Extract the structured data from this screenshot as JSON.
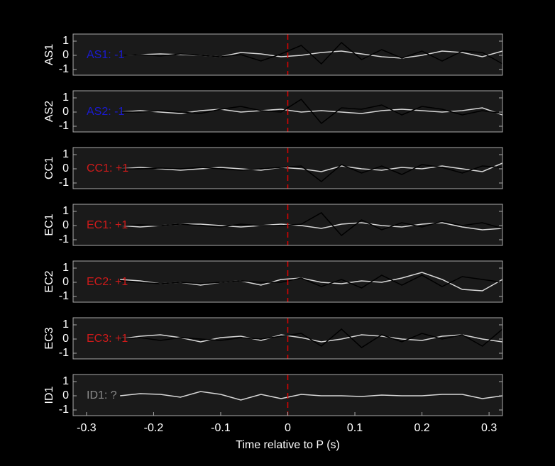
{
  "chart_data": [
    {
      "type": "line",
      "ylabel": "AS1",
      "annotation": "AS1: -1",
      "annotation_color": "#1a1ad0",
      "x": [
        -0.25,
        -0.22,
        -0.19,
        -0.16,
        -0.13,
        -0.1,
        -0.07,
        -0.04,
        -0.01,
        0.02,
        0.05,
        0.08,
        0.11,
        0.14,
        0.17,
        0.2,
        0.23,
        0.26,
        0.29,
        0.32
      ],
      "series": [
        {
          "color": "#d8d8d8",
          "values": [
            0,
            0.05,
            0.1,
            0.05,
            0,
            -0.1,
            0.2,
            0.1,
            -0.1,
            0,
            0.2,
            0.3,
            0.1,
            -0.1,
            -0.2,
            0,
            0.3,
            0.2,
            -0.1,
            0.3
          ]
        },
        {
          "color": "#000000",
          "values": [
            0,
            0.05,
            -0.05,
            0.1,
            0,
            -0.1,
            0.05,
            -0.4,
            0.1,
            0.7,
            -0.6,
            0.9,
            -0.3,
            0.4,
            -0.2,
            0.3,
            -0.4,
            0.3,
            0.2,
            -0.6
          ]
        }
      ],
      "xlim": [
        -0.32,
        0.32
      ],
      "ylim": [
        -1.4,
        1.5
      ],
      "yticks": [
        1,
        0,
        -1
      ],
      "vline": 0,
      "vline_color": "#e00000"
    },
    {
      "type": "line",
      "ylabel": "AS2",
      "annotation": "AS2: -1",
      "annotation_color": "#1a1ad0",
      "x": [
        -0.25,
        -0.22,
        -0.19,
        -0.16,
        -0.13,
        -0.1,
        -0.07,
        -0.04,
        -0.01,
        0.02,
        0.05,
        0.08,
        0.11,
        0.14,
        0.17,
        0.2,
        0.23,
        0.26,
        0.29,
        0.32
      ],
      "series": [
        {
          "color": "#d8d8d8",
          "values": [
            0,
            0.1,
            0,
            -0.1,
            0.1,
            0.2,
            0,
            0.1,
            0.2,
            0,
            0.1,
            0,
            -0.1,
            0.1,
            0.2,
            0.1,
            0,
            0.1,
            0.3,
            -0.2
          ]
        },
        {
          "color": "#000000",
          "values": [
            0,
            0,
            0.1,
            0,
            -0.1,
            0.2,
            0.4,
            0.1,
            0,
            0.9,
            -0.8,
            0.3,
            0.2,
            0.5,
            -0.2,
            0.4,
            0.2,
            -0.2,
            0.1,
            -0.1
          ]
        }
      ],
      "xlim": [
        -0.32,
        0.32
      ],
      "ylim": [
        -1.4,
        1.5
      ],
      "yticks": [
        1,
        0,
        -1
      ],
      "vline": 0,
      "vline_color": "#e00000"
    },
    {
      "type": "line",
      "ylabel": "CC1",
      "annotation": "CC1: +1",
      "annotation_color": "#d01a1a",
      "x": [
        -0.25,
        -0.22,
        -0.19,
        -0.16,
        -0.13,
        -0.1,
        -0.07,
        -0.04,
        -0.01,
        0.02,
        0.05,
        0.08,
        0.11,
        0.14,
        0.17,
        0.2,
        0.23,
        0.26,
        0.29,
        0.32
      ],
      "series": [
        {
          "color": "#d8d8d8",
          "values": [
            0,
            0.1,
            0,
            -0.1,
            0,
            0.1,
            0,
            -0.1,
            0.1,
            0,
            -0.2,
            0.2,
            0,
            -0.1,
            0.1,
            0,
            0.2,
            0,
            -0.2,
            0.4
          ]
        },
        {
          "color": "#000000",
          "values": [
            0,
            0,
            0.05,
            0,
            0.1,
            0,
            -0.1,
            0,
            0.1,
            0.2,
            -0.9,
            0.3,
            -0.3,
            0.2,
            -0.4,
            0.3,
            0.1,
            -0.3,
            0.2,
            0.1
          ]
        }
      ],
      "xlim": [
        -0.32,
        0.32
      ],
      "ylim": [
        -1.4,
        1.5
      ],
      "yticks": [
        1,
        0,
        -1
      ],
      "vline": 0,
      "vline_color": "#e00000"
    },
    {
      "type": "line",
      "ylabel": "EC1",
      "annotation": "EC1: +1",
      "annotation_color": "#d01a1a",
      "x": [
        -0.25,
        -0.22,
        -0.19,
        -0.16,
        -0.13,
        -0.1,
        -0.07,
        -0.04,
        -0.01,
        0.02,
        0.05,
        0.08,
        0.11,
        0.14,
        0.17,
        0.2,
        0.23,
        0.26,
        0.29,
        0.32
      ],
      "series": [
        {
          "color": "#d8d8d8",
          "values": [
            0,
            -0.1,
            0,
            0.1,
            0.1,
            0,
            -0.1,
            0,
            0.1,
            0,
            -0.2,
            0.1,
            0.2,
            0,
            -0.1,
            0.1,
            0.2,
            -0.1,
            -0.3,
            -0.2
          ]
        },
        {
          "color": "#000000",
          "values": [
            0,
            0.05,
            0,
            0.1,
            0,
            -0.1,
            0.1,
            0,
            0,
            0.1,
            0.9,
            -0.7,
            0.4,
            -0.3,
            0.2,
            -0.1,
            0.3,
            0,
            0.2,
            -0.2
          ]
        }
      ],
      "xlim": [
        -0.32,
        0.32
      ],
      "ylim": [
        -1.4,
        1.5
      ],
      "yticks": [
        1,
        0,
        -1
      ],
      "vline": 0,
      "vline_color": "#e00000"
    },
    {
      "type": "line",
      "ylabel": "EC2",
      "annotation": "EC2: +1",
      "annotation_color": "#d01a1a",
      "x": [
        -0.25,
        -0.22,
        -0.19,
        -0.16,
        -0.13,
        -0.1,
        -0.07,
        -0.04,
        -0.01,
        0.02,
        0.05,
        0.08,
        0.11,
        0.14,
        0.17,
        0.2,
        0.23,
        0.26,
        0.29,
        0.32
      ],
      "series": [
        {
          "color": "#d8d8d8",
          "values": [
            0.2,
            0.1,
            -0.1,
            0,
            -0.2,
            0,
            0.1,
            -0.2,
            0.2,
            0.3,
            0,
            -0.1,
            0.1,
            0,
            0.3,
            0.7,
            0.2,
            -0.5,
            -0.6,
            0.2
          ]
        },
        {
          "color": "#000000",
          "values": [
            0.1,
            0,
            -0.1,
            0,
            -0.1,
            0,
            0.1,
            0,
            0,
            0.3,
            -0.3,
            0.2,
            -0.4,
            0.5,
            -0.2,
            0.5,
            -0.3,
            0.4,
            0.2,
            0
          ]
        }
      ],
      "xlim": [
        -0.32,
        0.32
      ],
      "ylim": [
        -1.4,
        1.5
      ],
      "yticks": [
        1,
        0,
        -1
      ],
      "vline": 0,
      "vline_color": "#e00000"
    },
    {
      "type": "line",
      "ylabel": "EC3",
      "annotation": "EC3: +1",
      "annotation_color": "#d01a1a",
      "x": [
        -0.25,
        -0.22,
        -0.19,
        -0.16,
        -0.13,
        -0.1,
        -0.07,
        -0.04,
        -0.01,
        0.02,
        0.05,
        0.08,
        0.11,
        0.14,
        0.17,
        0.2,
        0.23,
        0.26,
        0.29,
        0.32
      ],
      "series": [
        {
          "color": "#d8d8d8",
          "values": [
            0,
            0.2,
            0.3,
            0.1,
            -0.2,
            0.1,
            0.2,
            -0.1,
            0.3,
            0.1,
            -0.2,
            0,
            0.3,
            0.2,
            0,
            -0.1,
            0.2,
            0.3,
            0,
            -0.2
          ]
        },
        {
          "color": "#000000",
          "values": [
            0,
            0.1,
            -0.1,
            0.1,
            0,
            -0.1,
            0.1,
            0,
            0.2,
            0.4,
            -0.5,
            0.7,
            -0.6,
            0.3,
            -0.2,
            0.4,
            0,
            0.3,
            -0.5,
            0.7
          ]
        }
      ],
      "xlim": [
        -0.32,
        0.32
      ],
      "ylim": [
        -1.4,
        1.5
      ],
      "yticks": [
        1,
        0,
        -1
      ],
      "vline": 0,
      "vline_color": "#e00000"
    },
    {
      "type": "line",
      "ylabel": "ID1",
      "annotation": "ID1: ?",
      "annotation_color": "#8c8c8c",
      "x": [
        -0.25,
        -0.22,
        -0.19,
        -0.16,
        -0.13,
        -0.1,
        -0.07,
        -0.04,
        -0.01,
        0.02,
        0.05,
        0.08,
        0.11,
        0.14,
        0.17,
        0.2,
        0.23,
        0.26,
        0.29,
        0.32
      ],
      "series": [
        {
          "color": "#d8d8d8",
          "values": [
            0,
            0.15,
            0.1,
            -0.1,
            0.3,
            0.1,
            -0.3,
            0.1,
            -0.2,
            0.1,
            0,
            0,
            -0.05,
            0.05,
            0,
            0,
            0.1,
            0.1,
            -0.2,
            0
          ]
        }
      ],
      "xlim": [
        -0.32,
        0.32
      ],
      "ylim": [
        -1.4,
        1.5
      ],
      "yticks": [
        1,
        0,
        -1
      ],
      "vline": 0,
      "vline_color": "#e00000",
      "xticks": [
        -0.3,
        -0.2,
        -0.1,
        0,
        0.1,
        0.2,
        0.3
      ],
      "xlabel": "Time relative to P (s)"
    }
  ]
}
